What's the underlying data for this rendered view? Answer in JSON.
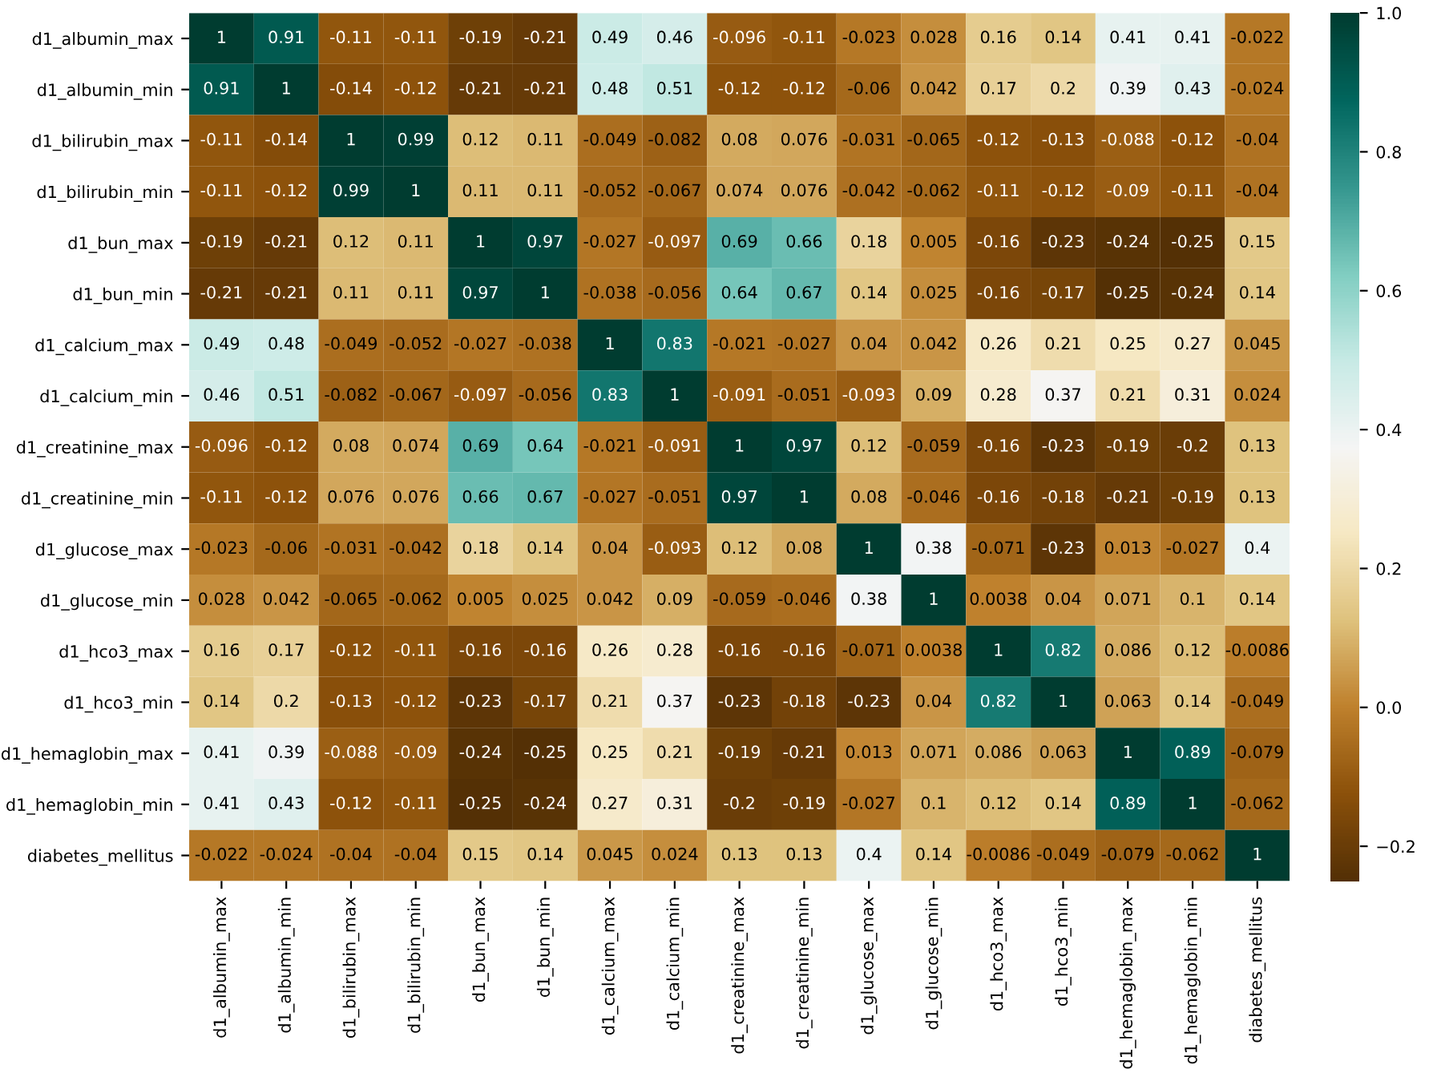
{
  "chart_data": {
    "type": "heatmap",
    "categories": [
      "d1_albumin_max",
      "d1_albumin_min",
      "d1_bilirubin_max",
      "d1_bilirubin_min",
      "d1_bun_max",
      "d1_bun_min",
      "d1_calcium_max",
      "d1_calcium_min",
      "d1_creatinine_max",
      "d1_creatinine_min",
      "d1_glucose_max",
      "d1_glucose_min",
      "d1_hco3_max",
      "d1_hco3_min",
      "d1_hemaglobin_max",
      "d1_hemaglobin_min",
      "diabetes_mellitus"
    ],
    "y_categories": [
      "d1_albumin_max",
      "d1_albumin_min",
      "d1_bilirubin_max",
      "d1_bilirubin_min",
      "d1_bun_max",
      "d1_bun_min",
      "d1_calcium_max",
      "d1_calcium_min",
      "d1_creatinine_max",
      "d1_creatinine_min",
      "d1_glucose_max",
      "d1_glucose_min",
      "d1_hco3_max",
      "d1_hco3_min",
      "d1_hemaglobin_max",
      "d1_hemaglobin_min",
      "diabetes_mellitus"
    ],
    "cells": [
      [
        1,
        0.91,
        -0.11,
        -0.11,
        -0.19,
        -0.21,
        0.49,
        0.46,
        -0.096,
        -0.11,
        -0.023,
        0.028,
        0.16,
        0.14,
        0.41,
        0.41,
        -0.022
      ],
      [
        0.91,
        1,
        -0.14,
        -0.12,
        -0.21,
        -0.21,
        0.48,
        0.51,
        -0.12,
        -0.12,
        -0.06,
        0.042,
        0.17,
        0.2,
        0.39,
        0.43,
        -0.024
      ],
      [
        -0.11,
        -0.14,
        1,
        0.99,
        0.12,
        0.11,
        -0.049,
        -0.082,
        0.08,
        0.076,
        -0.031,
        -0.065,
        -0.12,
        -0.13,
        -0.088,
        -0.12,
        -0.04
      ],
      [
        -0.11,
        -0.12,
        0.99,
        1,
        0.11,
        0.11,
        -0.052,
        -0.067,
        0.074,
        0.076,
        -0.042,
        -0.062,
        -0.11,
        -0.12,
        -0.09,
        -0.11,
        -0.04
      ],
      [
        -0.19,
        -0.21,
        0.12,
        0.11,
        1,
        0.97,
        -0.027,
        -0.097,
        0.69,
        0.66,
        0.18,
        0.005,
        -0.16,
        -0.23,
        -0.24,
        -0.25,
        0.15
      ],
      [
        -0.21,
        -0.21,
        0.11,
        0.11,
        0.97,
        1,
        -0.038,
        -0.056,
        0.64,
        0.67,
        0.14,
        0.025,
        -0.16,
        -0.17,
        -0.25,
        -0.24,
        0.14
      ],
      [
        0.49,
        0.48,
        -0.049,
        -0.052,
        -0.027,
        -0.038,
        1,
        0.83,
        -0.021,
        -0.027,
        0.04,
        0.042,
        0.26,
        0.21,
        0.25,
        0.27,
        0.045
      ],
      [
        0.46,
        0.51,
        -0.082,
        -0.067,
        -0.097,
        -0.056,
        0.83,
        1,
        -0.091,
        -0.051,
        -0.093,
        0.09,
        0.28,
        0.37,
        0.21,
        0.31,
        0.024
      ],
      [
        -0.096,
        -0.12,
        0.08,
        0.074,
        0.69,
        0.64,
        -0.021,
        -0.091,
        1,
        0.97,
        0.12,
        -0.059,
        -0.16,
        -0.23,
        -0.19,
        -0.2,
        0.13
      ],
      [
        -0.11,
        -0.12,
        0.076,
        0.076,
        0.66,
        0.67,
        -0.027,
        -0.051,
        0.97,
        1,
        0.08,
        -0.046,
        -0.16,
        -0.18,
        -0.21,
        -0.19,
        0.13
      ],
      [
        -0.023,
        -0.06,
        -0.031,
        -0.042,
        0.18,
        0.14,
        0.04,
        -0.093,
        0.12,
        0.08,
        1,
        0.38,
        -0.071,
        -0.23,
        0.013,
        -0.027,
        0.4
      ],
      [
        0.028,
        0.042,
        -0.065,
        -0.062,
        0.005,
        0.025,
        0.042,
        0.09,
        -0.059,
        -0.046,
        0.38,
        1,
        0.0038,
        0.04,
        0.071,
        0.1,
        0.14
      ],
      [
        0.16,
        0.17,
        -0.12,
        -0.11,
        -0.16,
        -0.16,
        0.26,
        0.28,
        -0.16,
        -0.16,
        -0.071,
        0.0038,
        1,
        0.82,
        0.086,
        0.12,
        -0.0086
      ],
      [
        0.14,
        0.2,
        -0.13,
        -0.12,
        -0.23,
        -0.17,
        0.21,
        0.37,
        -0.23,
        -0.18,
        -0.23,
        0.04,
        0.82,
        1,
        0.063,
        0.14,
        -0.049
      ],
      [
        0.41,
        0.39,
        -0.088,
        -0.09,
        -0.24,
        -0.25,
        0.25,
        0.21,
        -0.19,
        -0.21,
        0.013,
        0.071,
        0.086,
        0.063,
        1,
        0.89,
        -0.079
      ],
      [
        0.41,
        0.43,
        -0.12,
        -0.11,
        -0.25,
        -0.24,
        0.27,
        0.31,
        -0.2,
        -0.19,
        -0.027,
        0.1,
        0.12,
        0.14,
        0.89,
        1,
        -0.062
      ],
      [
        -0.022,
        -0.024,
        -0.04,
        -0.04,
        0.15,
        0.14,
        0.045,
        0.024,
        0.13,
        0.13,
        0.4,
        0.14,
        -0.0086,
        -0.049,
        -0.079,
        -0.062,
        1
      ]
    ],
    "data_labels": true,
    "clim": [
      -0.25,
      1
    ],
    "cticks": [
      {
        "value": -0.2,
        "label": "−0.2"
      },
      {
        "value": 0,
        "label": "0.0"
      },
      {
        "value": 0.2,
        "label": "0.2"
      },
      {
        "value": 0.4,
        "label": "0.4"
      },
      {
        "value": 0.6,
        "label": "0.6"
      },
      {
        "value": 0.8,
        "label": "0.8"
      },
      {
        "value": 1,
        "label": "1.0"
      }
    ]
  }
}
